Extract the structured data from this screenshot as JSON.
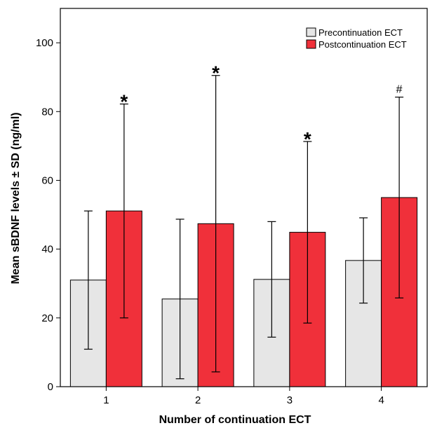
{
  "chart_data": {
    "type": "bar",
    "title": "",
    "xlabel": "Number of continuation ECT",
    "ylabel": "Mean sBDNF levels  ± SD (ng/ml)",
    "categories": [
      "1",
      "2",
      "3",
      "4"
    ],
    "ylim": [
      0,
      110
    ],
    "yticks": [
      "0",
      "20",
      "40",
      "60",
      "80",
      "100"
    ],
    "grid": false,
    "legend_position": "top-right",
    "series": [
      {
        "name": "Precontinuation ECT",
        "color": "#e6e6e6",
        "values": [
          31.0,
          25.5,
          31.2,
          36.7
        ],
        "sd": [
          20.1,
          23.2,
          16.8,
          12.4
        ]
      },
      {
        "name": "Postcontinuation ECT",
        "color": "#f0303a",
        "values": [
          51.1,
          47.4,
          44.9,
          55.0
        ],
        "sd": [
          31.1,
          43.1,
          26.4,
          29.2
        ]
      }
    ],
    "annotations": [
      "*",
      "*",
      "*",
      "#"
    ]
  }
}
